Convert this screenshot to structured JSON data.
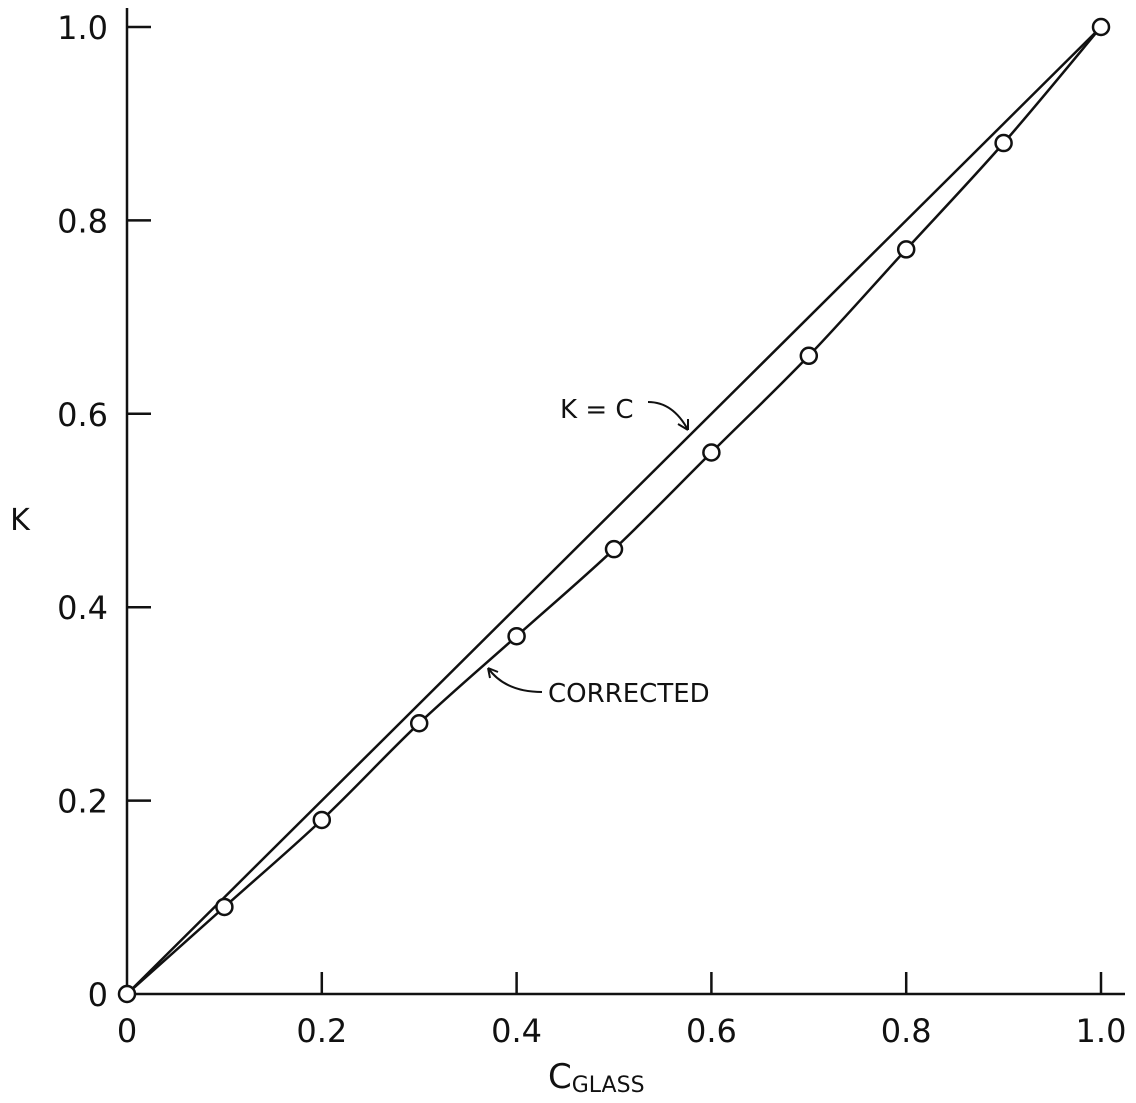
{
  "chart_data": {
    "type": "line",
    "xlabel_main": "C",
    "xlabel_sub": "GLASS",
    "ylabel": "K",
    "xlim": [
      0,
      1.0
    ],
    "ylim": [
      0,
      1.0
    ],
    "x_ticks": [
      0,
      0.2,
      0.4,
      0.6,
      0.8,
      1.0
    ],
    "x_tick_labels": [
      "0",
      "0.2",
      "0.4",
      "0.6",
      "0.8",
      "1.0"
    ],
    "y_ticks": [
      0,
      0.2,
      0.4,
      0.6,
      0.8,
      1.0
    ],
    "y_tick_labels": [
      "0",
      "0.2",
      "0.4",
      "0.6",
      "0.8",
      "1.0"
    ],
    "grid": false,
    "series": [
      {
        "name": "K = C",
        "style": "line",
        "x": [
          0,
          1.0
        ],
        "y": [
          0,
          1.0
        ]
      },
      {
        "name": "CORRECTED",
        "style": "line-markers",
        "x": [
          0,
          0.1,
          0.2,
          0.3,
          0.4,
          0.5,
          0.6,
          0.7,
          0.8,
          0.9,
          1.0
        ],
        "y": [
          0,
          0.09,
          0.18,
          0.28,
          0.37,
          0.46,
          0.56,
          0.66,
          0.77,
          0.88,
          1.0
        ]
      }
    ],
    "annotations": [
      "K = C",
      "CORRECTED"
    ]
  }
}
